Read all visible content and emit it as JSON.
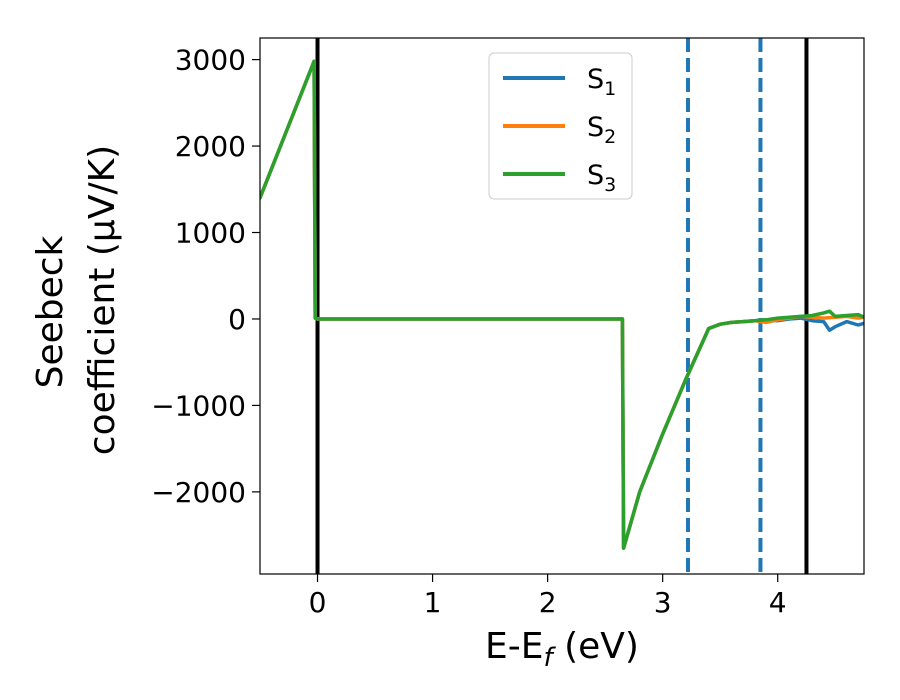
{
  "chart_data": {
    "type": "line",
    "xlabel": "E-E",
    "xlabel_sub": "f",
    "xlabel_unit": "(eV)",
    "ylabel_line1": "Seebeck",
    "ylabel_line2": "coefficient  (μV/K)",
    "xlim": [
      -0.5,
      4.75
    ],
    "ylim": [
      -2950,
      3250
    ],
    "xticks": [
      0,
      1,
      2,
      3,
      4
    ],
    "xtick_labels": [
      "0",
      "1",
      "2",
      "3",
      "4"
    ],
    "yticks": [
      -2000,
      -1000,
      0,
      1000,
      2000,
      3000
    ],
    "ytick_labels": [
      "−2000",
      "−1000",
      "0",
      "1000",
      "2000",
      "3000"
    ],
    "grid": false,
    "legend_position": "top-center",
    "vlines": [
      {
        "x": 0.0,
        "style": "solid",
        "color": "#000000"
      },
      {
        "x": 4.25,
        "style": "solid",
        "color": "#000000"
      },
      {
        "x": 3.22,
        "style": "dashed",
        "color": "#1f77b4"
      },
      {
        "x": 3.85,
        "style": "dashed",
        "color": "#1f77b4"
      }
    ],
    "series": [
      {
        "name": "S",
        "subscript": "1",
        "color": "#1f77b4",
        "x": [
          -0.5,
          -0.03,
          -0.02,
          0.0,
          0.5,
          1.0,
          1.5,
          2.0,
          2.5,
          2.65,
          2.66,
          2.8,
          3.0,
          3.2,
          3.4,
          3.5,
          3.6,
          3.7,
          3.8,
          3.9,
          4.0,
          4.1,
          4.2,
          4.3,
          4.4,
          4.45,
          4.5,
          4.6,
          4.7,
          4.75
        ],
        "y": [
          1400,
          2980,
          10,
          0,
          0,
          0,
          0,
          0,
          0,
          0,
          -2650,
          -2000,
          -1330,
          -700,
          -110,
          -60,
          -40,
          -30,
          -20,
          -10,
          -20,
          0,
          10,
          -20,
          -30,
          -130,
          -90,
          -30,
          -70,
          -50
        ]
      },
      {
        "name": "S",
        "subscript": "2",
        "color": "#ff7f0e",
        "x": [
          -0.5,
          -0.03,
          -0.02,
          0.0,
          0.5,
          1.0,
          1.5,
          2.0,
          2.5,
          2.65,
          2.66,
          2.8,
          3.0,
          3.2,
          3.4,
          3.5,
          3.6,
          3.7,
          3.8,
          3.9,
          4.0,
          4.1,
          4.2,
          4.3,
          4.4,
          4.5,
          4.6,
          4.7,
          4.75
        ],
        "y": [
          1400,
          2980,
          10,
          0,
          0,
          0,
          0,
          0,
          0,
          0,
          -2650,
          -2000,
          -1330,
          -700,
          -110,
          -60,
          -40,
          -30,
          -20,
          -40,
          -10,
          10,
          30,
          20,
          10,
          20,
          30,
          10,
          20
        ]
      },
      {
        "name": "S",
        "subscript": "3",
        "color": "#2ca02c",
        "x": [
          -0.5,
          -0.03,
          -0.02,
          0.0,
          0.5,
          1.0,
          1.5,
          2.0,
          2.5,
          2.65,
          2.66,
          2.8,
          3.0,
          3.2,
          3.4,
          3.5,
          3.6,
          3.7,
          3.8,
          3.9,
          4.0,
          4.1,
          4.2,
          4.3,
          4.4,
          4.45,
          4.5,
          4.6,
          4.7,
          4.75
        ],
        "y": [
          1400,
          2980,
          10,
          0,
          0,
          0,
          0,
          0,
          0,
          0,
          -2650,
          -2000,
          -1330,
          -700,
          -110,
          -60,
          -40,
          -30,
          -20,
          -10,
          10,
          20,
          30,
          40,
          70,
          90,
          30,
          40,
          50,
          20
        ]
      }
    ]
  }
}
